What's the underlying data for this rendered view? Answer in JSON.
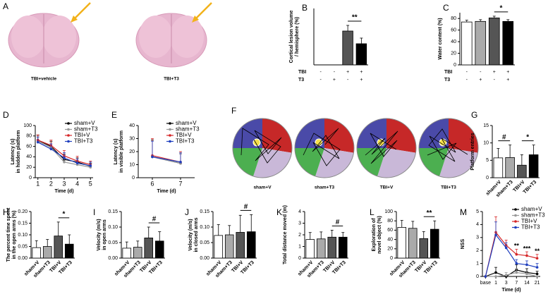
{
  "figure_a": {
    "letter": "A",
    "captions": [
      "TBI+vehicle",
      "TBI+T3"
    ]
  },
  "figure_f": {
    "letter": "F",
    "captions": [
      "sham+V",
      "sham+T3",
      "TBI+V",
      "TBI+T3"
    ]
  },
  "chart_data": [
    {
      "letter": "B",
      "type": "bar",
      "ylabel": [
        "Cortical lesion volume",
        "/ hemisphere (%)"
      ],
      "rows": [
        {
          "name": "TBI",
          "marks": [
            "-",
            "-",
            "+",
            "+"
          ]
        },
        {
          "name": "T3",
          "marks": [
            "-",
            "+",
            "-",
            "+"
          ]
        }
      ],
      "values": [
        0,
        0,
        12,
        7.5
      ],
      "errors": [
        0,
        0,
        2,
        2
      ],
      "colors": [
        "#ffffff",
        "#aaaaaa",
        "#555555",
        "#000000"
      ],
      "ylim": [
        0,
        20
      ],
      "significance": [
        {
          "text": "**",
          "between": [
            2,
            3
          ]
        }
      ]
    },
    {
      "letter": "C",
      "type": "bar",
      "ylabel": [
        "Water content (%)"
      ],
      "rows": [
        {
          "name": "TBI",
          "marks": [
            "-",
            "-",
            "+",
            "+"
          ]
        },
        {
          "name": "T3",
          "marks": [
            "-",
            "+",
            "-",
            "+"
          ]
        }
      ],
      "values": [
        74,
        75,
        81,
        75
      ],
      "errors": [
        3,
        3,
        3,
        3
      ],
      "colors": [
        "#ffffff",
        "#aaaaaa",
        "#555555",
        "#000000"
      ],
      "ylim": [
        0,
        90
      ],
      "yticks": [
        0,
        20,
        40,
        60,
        80
      ],
      "significance": [
        {
          "text": "*",
          "between": [
            2,
            3
          ]
        }
      ]
    },
    {
      "letter": "D",
      "type": "line",
      "ylabel": [
        "Latency (s)",
        "in hidden platform"
      ],
      "xlabel": "Time (d)",
      "x": [
        1,
        2,
        3,
        4,
        5
      ],
      "xlim": [
        0.8,
        5.2
      ],
      "xticks": [
        1,
        2,
        3,
        4,
        5
      ],
      "ylim": [
        0,
        100
      ],
      "yticks": [
        0,
        20,
        40,
        60,
        80,
        100
      ],
      "legend": "upper right",
      "series": [
        {
          "name": "sham+V",
          "color": "#000000",
          "values": [
            72,
            60,
            35,
            30,
            22
          ],
          "errors": [
            10,
            10,
            10,
            8,
            6
          ]
        },
        {
          "name": "sham+T3",
          "color": "#999999",
          "values": [
            70,
            58,
            30,
            25,
            20
          ],
          "errors": [
            10,
            10,
            9,
            8,
            6
          ]
        },
        {
          "name": "TBI+V",
          "color": "#d62728",
          "values": [
            72,
            62,
            42,
            32,
            25
          ],
          "errors": [
            10,
            10,
            10,
            9,
            7
          ]
        },
        {
          "name": "TBI+T3",
          "color": "#1f3fbf",
          "values": [
            68,
            55,
            38,
            28,
            23
          ],
          "errors": [
            10,
            10,
            10,
            8,
            7
          ]
        }
      ]
    },
    {
      "letter": "E",
      "type": "line",
      "ylabel": [
        "Latency (s)",
        "in visible platform"
      ],
      "xlabel": "Time (d)",
      "x": [
        6,
        7
      ],
      "xlim": [
        5.5,
        7.5
      ],
      "xticks": [
        6,
        7
      ],
      "ylim": [
        0,
        40
      ],
      "yticks": [
        0,
        10,
        20,
        30,
        40
      ],
      "legend": "upper right",
      "series": [
        {
          "name": "sham+V",
          "color": "#000000",
          "values": [
            16,
            11
          ],
          "errors": [
            13,
            8
          ]
        },
        {
          "name": "sham+T3",
          "color": "#999999",
          "values": [
            16,
            11
          ],
          "errors": [
            12,
            7
          ]
        },
        {
          "name": "TBI+V",
          "color": "#d62728",
          "values": [
            17,
            12
          ],
          "errors": [
            13,
            8
          ]
        },
        {
          "name": "TBI+T3",
          "color": "#1f3fbf",
          "values": [
            16,
            12
          ],
          "errors": [
            12,
            7
          ]
        }
      ]
    },
    {
      "letter": "G",
      "type": "bar",
      "ylabel": [
        "Platform  entries"
      ],
      "categories": [
        "sham+V",
        "sham+T3",
        "TBI+V",
        "TBI+T3"
      ],
      "values": [
        5.7,
        5.8,
        3.6,
        6.6
      ],
      "errors": [
        2.7,
        3.6,
        3,
        2.8
      ],
      "colors": [
        "#ffffff",
        "#aaaaaa",
        "#555555",
        "#000000"
      ],
      "ylim": [
        0,
        15
      ],
      "yticks": [
        0,
        5,
        10,
        15
      ],
      "significance": [
        {
          "text": "#",
          "between": [
            0,
            1
          ]
        },
        {
          "text": "*",
          "between": [
            2,
            3
          ]
        }
      ]
    },
    {
      "letter": "H",
      "type": "bar",
      "ylabel": [
        "The percent time spent",
        "in the open arms (%)"
      ],
      "categories": [
        "sham+V",
        "sham+T3",
        "TBI+V",
        "TBI+T3"
      ],
      "values": [
        0.045,
        0.05,
        0.095,
        0.06
      ],
      "errors": [
        0.03,
        0.03,
        0.06,
        0.04
      ],
      "colors": [
        "#ffffff",
        "#aaaaaa",
        "#555555",
        "#000000"
      ],
      "ylim": [
        0,
        0.2
      ],
      "yticks": [
        {
          "value": 0,
          "label": "0.00"
        },
        {
          "value": 0.05,
          "label": "0.05"
        },
        {
          "value": 0.1,
          "label": "0.10"
        },
        {
          "value": 0.15,
          "label": "0.15"
        },
        {
          "value": 0.2,
          "label": "0.20"
        }
      ],
      "significance": [
        {
          "text": "*",
          "between": [
            2,
            3
          ]
        }
      ]
    },
    {
      "letter": "I",
      "type": "bar",
      "ylabel": [
        "Velocity (m/s)",
        "in open arms"
      ],
      "categories": [
        "sham+V",
        "sham+T3",
        "TBI+V",
        "TBI+T3"
      ],
      "values": [
        0.032,
        0.035,
        0.065,
        0.055
      ],
      "errors": [
        0.02,
        0.02,
        0.035,
        0.03
      ],
      "colors": [
        "#ffffff",
        "#aaaaaa",
        "#555555",
        "#000000"
      ],
      "ylim": [
        0,
        0.15
      ],
      "yticks": [
        {
          "value": 0,
          "label": "0.00"
        },
        {
          "value": 0.05,
          "label": "0.05"
        },
        {
          "value": 0.1,
          "label": "0.10"
        },
        {
          "value": 0.15,
          "label": "0.15"
        }
      ],
      "significance": [
        {
          "text": "#",
          "between": [
            2,
            3
          ]
        }
      ]
    },
    {
      "letter": "J",
      "type": "bar",
      "ylabel": [
        "Velocity (m/s)",
        "in closed arms"
      ],
      "categories": [
        "sham+V",
        "sham+T3",
        "TBI+V",
        "TBI+T3"
      ],
      "values": [
        0.073,
        0.075,
        0.083,
        0.085
      ],
      "errors": [
        0.035,
        0.03,
        0.055,
        0.055
      ],
      "colors": [
        "#ffffff",
        "#aaaaaa",
        "#555555",
        "#000000"
      ],
      "ylim": [
        0,
        0.15
      ],
      "yticks": [
        {
          "value": 0,
          "label": "0.00"
        },
        {
          "value": 0.05,
          "label": "0.05"
        },
        {
          "value": 0.1,
          "label": "0.10"
        },
        {
          "value": 0.15,
          "label": "0.15"
        }
      ],
      "significance": [
        {
          "text": "#",
          "between": [
            2,
            3
          ]
        }
      ]
    },
    {
      "letter": "K",
      "type": "bar",
      "ylabel": [
        "Total distance moved (m)"
      ],
      "categories": [
        "sham+V",
        "sham+T3",
        "TBI+V",
        "TBI+T3"
      ],
      "values": [
        1.6,
        1.65,
        1.8,
        1.8
      ],
      "errors": [
        0.6,
        0.6,
        0.6,
        0.4
      ],
      "colors": [
        "#ffffff",
        "#aaaaaa",
        "#555555",
        "#000000"
      ],
      "ylim": [
        0,
        4
      ],
      "yticks": [
        0,
        1,
        2,
        3,
        4
      ],
      "significance": [
        {
          "text": "#",
          "between": [
            2,
            3
          ]
        }
      ]
    },
    {
      "letter": "L",
      "type": "bar",
      "ylabel": [
        "Exploration of",
        "novel object (%)"
      ],
      "categories": [
        "sham+V",
        "sham+T3",
        "TBI+V",
        "TBI+T3"
      ],
      "values": [
        66,
        64,
        42,
        62
      ],
      "errors": [
        15,
        15,
        15,
        18
      ],
      "colors": [
        "#ffffff",
        "#aaaaaa",
        "#555555",
        "#000000"
      ],
      "ylim": [
        0,
        100
      ],
      "yticks": [
        0,
        20,
        40,
        60,
        80,
        100
      ],
      "significance": [
        {
          "text": "**",
          "between": [
            2,
            3
          ]
        }
      ]
    },
    {
      "letter": "M",
      "type": "line",
      "ylabel": [
        "NSS"
      ],
      "xlabel": "Time (d)",
      "categories": [
        "base",
        "1",
        "3",
        "7",
        "14",
        "21"
      ],
      "ylim": [
        0,
        5
      ],
      "yticks": [
        0,
        1,
        2,
        3,
        4,
        5
      ],
      "legend": "upper right",
      "series": [
        {
          "name": "sham+V",
          "color": "#000000",
          "values": [
            0,
            0.3,
            0,
            0.5,
            0.3,
            0.2
          ],
          "errors": [
            0,
            0.4,
            0,
            0.4,
            0.3,
            0.2
          ]
        },
        {
          "name": "sham+T3",
          "color": "#999999",
          "values": [
            0,
            0,
            0.1,
            0.3,
            0.2,
            0
          ],
          "errors": [
            0,
            0,
            0.2,
            0.3,
            0.2,
            0
          ]
        },
        {
          "name": "TBI+V",
          "color": "#d62728",
          "values": [
            0,
            3.4,
            2.4,
            1.7,
            1.6,
            1.4
          ],
          "errors": [
            0,
            1.2,
            0.4,
            0.4,
            0.3,
            0.3
          ]
        },
        {
          "name": "TBI+T3",
          "color": "#1f3fbf",
          "values": [
            0,
            3.2,
            2.2,
            1,
            0.9,
            0.7
          ],
          "errors": [
            0,
            1,
            0.4,
            0.3,
            0.3,
            0.3
          ]
        }
      ],
      "annotations": [
        {
          "text": "**",
          "x": "7"
        },
        {
          "text": "***",
          "x": "14"
        },
        {
          "text": "**",
          "x": "21"
        }
      ]
    }
  ]
}
